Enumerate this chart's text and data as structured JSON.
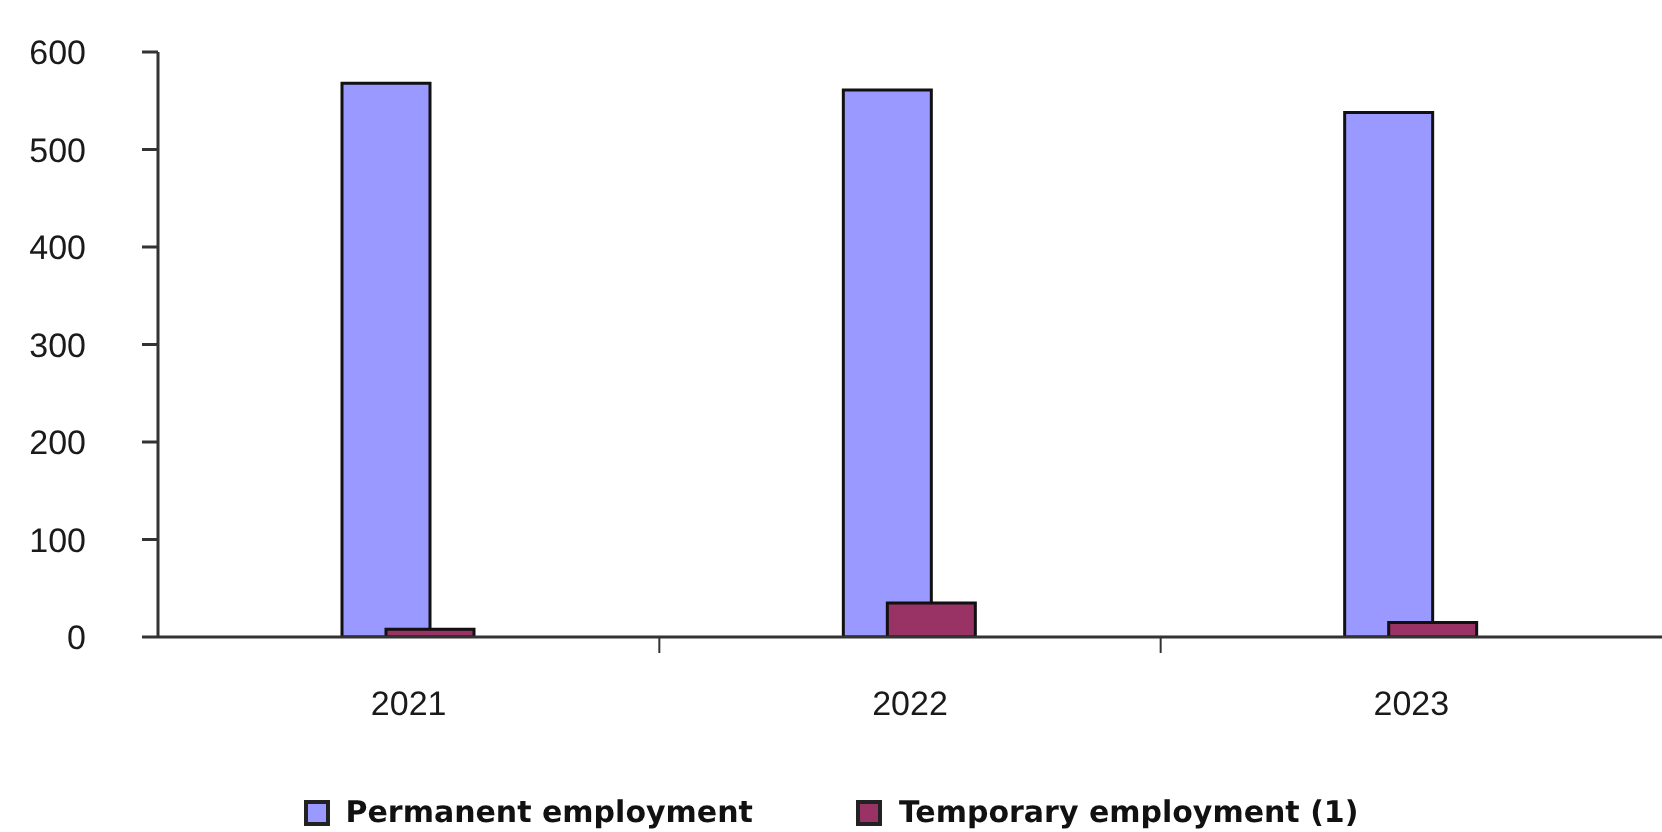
{
  "chart_data": {
    "type": "bar",
    "categories": [
      "2021",
      "2022",
      "2023"
    ],
    "series": [
      {
        "name": "Permanent employment",
        "color": "#9999ff",
        "values": [
          568,
          561,
          538
        ]
      },
      {
        "name": "Temporary employment (1)",
        "color": "#993366",
        "values": [
          8,
          35,
          15
        ]
      }
    ],
    "ylim": [
      0,
      600
    ],
    "yticks": [
      0,
      100,
      200,
      300,
      400,
      500,
      600
    ],
    "legend": "bottom"
  }
}
